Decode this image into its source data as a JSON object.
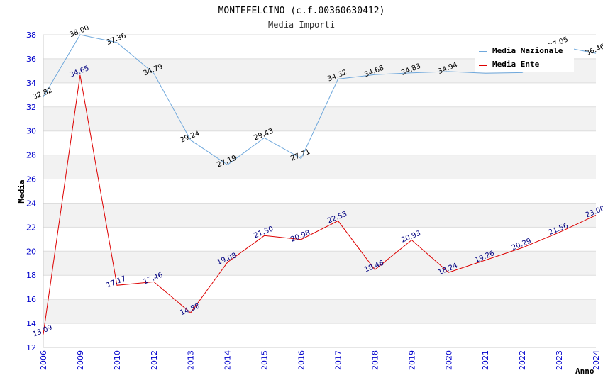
{
  "chart_data": {
    "type": "line",
    "title": "MONTEFELCINO (c.f.00360630412)",
    "subtitle": "Media Importi",
    "xlabel": "Anno",
    "ylabel": "Media",
    "categories": [
      "2006",
      "2009",
      "2010",
      "2012",
      "2013",
      "2014",
      "2015",
      "2016",
      "2017",
      "2018",
      "2019",
      "2020",
      "2021",
      "2022",
      "2023",
      "2024"
    ],
    "ylim": [
      12,
      38
    ],
    "yticks": [
      "12",
      "14",
      "16",
      "18",
      "20",
      "22",
      "24",
      "26",
      "28",
      "30",
      "32",
      "34",
      "36",
      "38"
    ],
    "grid": true,
    "legend_position": "top-right",
    "series": [
      {
        "name": "Media Nazionale",
        "color": "#6fa8dc",
        "values": [
          32.82,
          38.0,
          37.36,
          34.79,
          29.24,
          27.19,
          29.43,
          27.71,
          34.32,
          34.68,
          34.83,
          34.94,
          34.8,
          34.85,
          37.05,
          36.46
        ],
        "labels": [
          "32.82",
          "38.00",
          "37.36",
          "34.79",
          "29.24",
          "27.19",
          "29.43",
          "27.71",
          "34.32",
          "34.68",
          "34.83",
          "34.94",
          "",
          "",
          "37.05",
          "36.46"
        ]
      },
      {
        "name": "Media Ente",
        "color": "#dd0000",
        "values": [
          13.09,
          34.65,
          17.17,
          17.46,
          14.88,
          19.08,
          21.3,
          20.98,
          22.53,
          18.46,
          20.93,
          18.24,
          19.26,
          20.29,
          21.56,
          23.0
        ],
        "labels": [
          "13.09",
          "34.65",
          "17.17",
          "17.46",
          "14.88",
          "19.08",
          "21.30",
          "20.98",
          "22.53",
          "18.46",
          "20.93",
          "18.24",
          "19.26",
          "20.29",
          "21.56",
          "23.00"
        ]
      }
    ]
  }
}
